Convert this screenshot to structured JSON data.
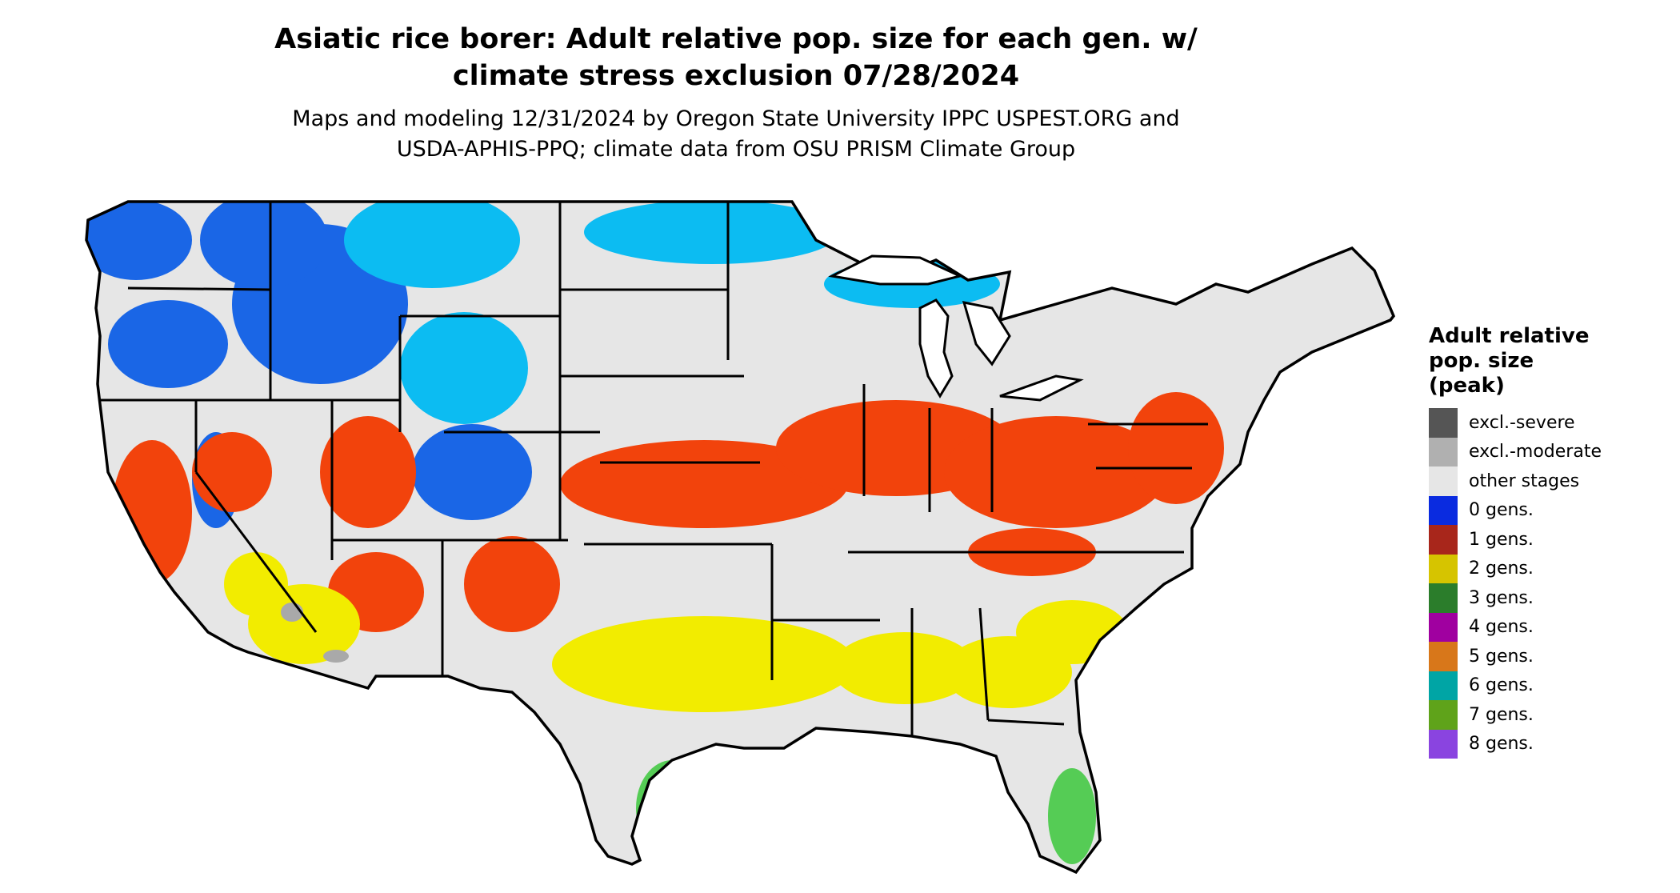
{
  "title_line1": "Asiatic rice borer: Adult relative pop. size for each gen. w/",
  "title_line2": "climate stress exclusion 07/28/2024",
  "subtitle_line1": "Maps and modeling 12/31/2024 by Oregon State University IPPC USPEST.ORG and",
  "subtitle_line2": "USDA-APHIS-PPQ; climate data from OSU PRISM Climate Group",
  "legend": {
    "title_line1": "Adult relative",
    "title_line2": "pop. size",
    "title_line3": "(peak)",
    "items": [
      {
        "label": "excl.-severe",
        "color": "#555555"
      },
      {
        "label": "excl.-moderate",
        "color": "#b0b0b0"
      },
      {
        "label": "other stages",
        "color": "#e6e6e6"
      },
      {
        "label": "0 gens.",
        "color": "#0a2be0"
      },
      {
        "label": "1 gens.",
        "color": "#a8261b"
      },
      {
        "label": "2 gens.",
        "color": "#d6c400"
      },
      {
        "label": "3 gens.",
        "color": "#2b7d2b"
      },
      {
        "label": "4 gens.",
        "color": "#a000a0"
      },
      {
        "label": "5 gens.",
        "color": "#d8771a"
      },
      {
        "label": "6 gens.",
        "color": "#00a5a5"
      },
      {
        "label": "7 gens.",
        "color": "#5fa31a"
      },
      {
        "label": "8 gens.",
        "color": "#8a44e0"
      }
    ]
  },
  "map_colors": {
    "land": "#e6e6e6",
    "blue_dark": "#1a66e6",
    "blue_light": "#0cbcf2",
    "red": "#f2430c",
    "yellow": "#f2ec00",
    "green": "#55cc55",
    "gray": "#a9a9a9",
    "border": "#000000"
  }
}
